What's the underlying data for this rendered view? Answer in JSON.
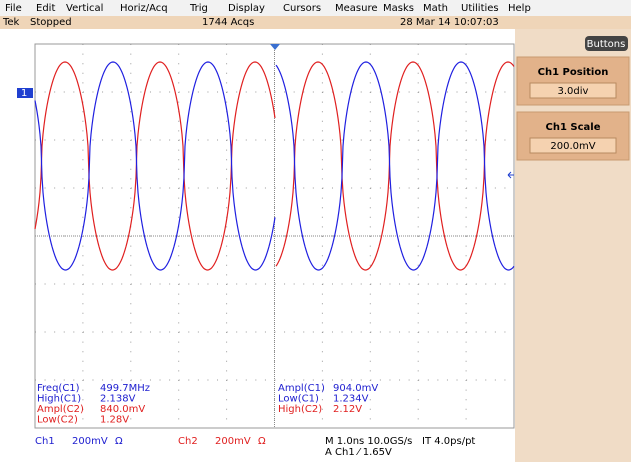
{
  "menu": [
    "File",
    "Edit",
    "Vertical",
    "Horiz/Acq",
    "Trig",
    "Display",
    "Cursors",
    "Measure",
    "Masks",
    "Math",
    "Utilities",
    "Help"
  ],
  "status": {
    "brand": "Tek",
    "state": "Stopped",
    "acqs": "1744 Acqs",
    "datetime": "28 Mar 14 10:07:03"
  },
  "panel": {
    "button": "Buttons",
    "items": [
      {
        "title": "Ch1 Position",
        "value": "3.0div"
      },
      {
        "title": "Ch1 Scale",
        "value": "200.0mV"
      }
    ]
  },
  "channel_marker": "1",
  "measurements": {
    "left": [
      {
        "label": "Freq(C1)",
        "value": "499.7MHz",
        "channel": "C1"
      },
      {
        "label": "High(C1)",
        "value": "2.138V",
        "channel": "C1"
      },
      {
        "label": "Ampl(C2)",
        "value": "840.0mV",
        "channel": "C2"
      },
      {
        "label": "Low(C2)",
        "value": "1.28V",
        "channel": "C2"
      }
    ],
    "right": [
      {
        "label": "Ampl(C1)",
        "value": "904.0mV",
        "channel": "C1"
      },
      {
        "label": "Low(C1)",
        "value": "1.234V",
        "channel": "C1"
      },
      {
        "label": "High(C2)",
        "value": "2.12V",
        "channel": "C2"
      }
    ]
  },
  "footer": {
    "ch1": "Ch1",
    "ch1_scale": "200mV",
    "ch1_coupling": "Ω",
    "ch2": "Ch2",
    "ch2_scale": "200mV",
    "ch2_coupling": "Ω",
    "timebase": "M 1.0ns 10.0GS/s",
    "interval": "IT 4.0ps/pt",
    "trigger": "A Ch1 ⁄ 1.65V"
  }
}
